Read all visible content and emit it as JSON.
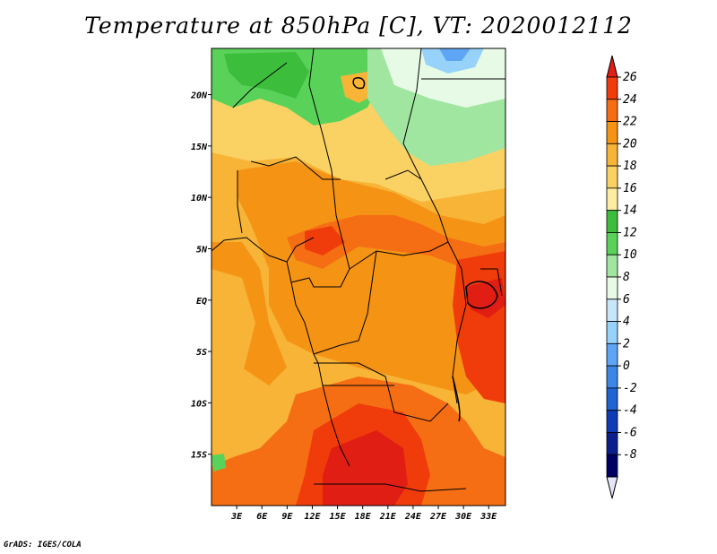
{
  "title": "Temperature at 850hPa [C], VT: 2020012112",
  "credit": "GrADS: IGES/COLA",
  "map": {
    "lat_labels": [
      {
        "lat": 20,
        "label": "20N"
      },
      {
        "lat": 15,
        "label": "15N"
      },
      {
        "lat": 10,
        "label": "10N"
      },
      {
        "lat": 5,
        "label": "5N"
      },
      {
        "lat": 0,
        "label": "EQ"
      },
      {
        "lat": -5,
        "label": "5S"
      },
      {
        "lat": -10,
        "label": "10S"
      },
      {
        "lat": -15,
        "label": "15S"
      }
    ],
    "lon_labels": [
      {
        "lon": 3,
        "label": "3E"
      },
      {
        "lon": 6,
        "label": "6E"
      },
      {
        "lon": 9,
        "label": "9E"
      },
      {
        "lon": 12,
        "label": "12E"
      },
      {
        "lon": 15,
        "label": "15E"
      },
      {
        "lon": 18,
        "label": "18E"
      },
      {
        "lon": 21,
        "label": "21E"
      },
      {
        "lon": 24,
        "label": "24E"
      },
      {
        "lon": 27,
        "label": "27E"
      },
      {
        "lon": 30,
        "label": "30E"
      },
      {
        "lon": 33,
        "label": "33E"
      }
    ],
    "lon_range": [
      0,
      35
    ],
    "lat_range": [
      -20,
      24.5
    ]
  },
  "colorbar": {
    "levels": [
      26,
      24,
      22,
      20,
      18,
      16,
      14,
      12,
      10,
      8,
      6,
      4,
      2,
      0,
      -2,
      -4,
      -6,
      -8
    ],
    "bands": [
      {
        "color": "#e01e14"
      },
      {
        "color": "#f03c0a"
      },
      {
        "color": "#f56e14"
      },
      {
        "color": "#f59314"
      },
      {
        "color": "#f7b437"
      },
      {
        "color": "#fad264"
      },
      {
        "color": "#fdeda0"
      },
      {
        "color": "#3cbe3c"
      },
      {
        "color": "#5ad25a"
      },
      {
        "color": "#a0e6a0"
      },
      {
        "color": "#e6fae6"
      },
      {
        "color": "#c8e6fa"
      },
      {
        "color": "#96d2fa"
      },
      {
        "color": "#5fa5f5"
      },
      {
        "color": "#3c87e6"
      },
      {
        "color": "#1e64d2"
      },
      {
        "color": "#0f3cb4"
      },
      {
        "color": "#0a1e8c"
      },
      {
        "color": "#000064"
      },
      {
        "color": "#e6e6fa"
      }
    ]
  },
  "regions": [
    {
      "id": "sahel-green",
      "color": "#5ad25a"
    },
    {
      "id": "north-yellow",
      "color": "#fad264"
    },
    {
      "id": "central-orange",
      "color": "#f59314"
    },
    {
      "id": "south-red",
      "color": "#e01e14"
    },
    {
      "id": "east-red",
      "color": "#f03c0a"
    },
    {
      "id": "northeast-green",
      "color": "#a0e6a0"
    },
    {
      "id": "northeast-blue",
      "color": "#96d2fa"
    }
  ]
}
